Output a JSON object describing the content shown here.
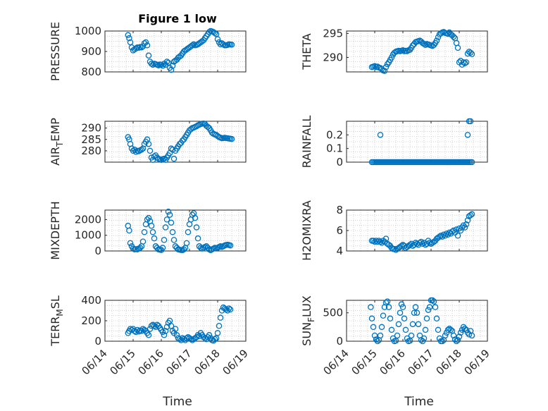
{
  "title": "Figure 1 low",
  "colors": {
    "marker": "#0072BD",
    "axis": "#262626",
    "grid": "#d0d0d0"
  },
  "x_axis": {
    "label": "Time",
    "ticks": [
      "06/14",
      "06/15",
      "06/16",
      "06/17",
      "06/18",
      "06/19"
    ],
    "range_days": [
      14,
      19
    ]
  },
  "chart_data": [
    {
      "type": "scatter",
      "ylabel": "PRESSURE",
      "ylim": [
        800,
        1000
      ],
      "yticks": [
        800,
        900,
        1000
      ],
      "ylabel_sub": null,
      "x": [
        14.82,
        14.86,
        14.9,
        14.95,
        15.0,
        15.05,
        15.1,
        15.15,
        15.2,
        15.25,
        15.3,
        15.35,
        15.4,
        15.45,
        15.5,
        15.55,
        15.6,
        15.65,
        15.7,
        15.75,
        15.8,
        15.85,
        15.9,
        15.95,
        16.0,
        16.05,
        16.1,
        16.15,
        16.2,
        16.25,
        16.3,
        16.35,
        16.4,
        16.45,
        16.5,
        16.55,
        16.6,
        16.65,
        16.7,
        16.75,
        16.8,
        16.85,
        16.9,
        16.95,
        17.0,
        17.05,
        17.1,
        17.15,
        17.2,
        17.25,
        17.3,
        17.35,
        17.4,
        17.45,
        17.5,
        17.55,
        17.6,
        17.65,
        17.7,
        17.75,
        17.8,
        17.85,
        17.9,
        17.95,
        18.0,
        18.05,
        18.1,
        18.15,
        18.2,
        18.25,
        18.3,
        18.35,
        18.4,
        18.45,
        18.5
      ],
      "y": [
        980,
        965,
        945,
        920,
        905,
        910,
        915,
        920,
        918,
        922,
        920,
        925,
        940,
        945,
        930,
        880,
        850,
        840,
        835,
        840,
        838,
        835,
        832,
        836,
        835,
        830,
        840,
        835,
        850,
        845,
        820,
        810,
        830,
        850,
        855,
        860,
        870,
        875,
        880,
        890,
        900,
        905,
        910,
        915,
        920,
        925,
        930,
        935,
        930,
        932,
        935,
        940,
        945,
        950,
        955,
        965,
        975,
        985,
        995,
        1000,
        998,
        995,
        990,
        985,
        960,
        945,
        935,
        940,
        935,
        930,
        930,
        932,
        935,
        934,
        933
      ]
    },
    {
      "type": "scatter",
      "ylabel": "THETA",
      "ylim": [
        287,
        295.5
      ],
      "yticks": [
        290,
        295
      ],
      "ylabel_sub": null,
      "x": [
        14.9,
        14.95,
        15.0,
        15.05,
        15.1,
        15.15,
        15.2,
        15.25,
        15.3,
        15.35,
        15.4,
        15.45,
        15.5,
        15.55,
        15.6,
        15.65,
        15.7,
        15.75,
        15.8,
        15.85,
        15.9,
        15.95,
        16.0,
        16.05,
        16.1,
        16.15,
        16.2,
        16.25,
        16.3,
        16.35,
        16.4,
        16.45,
        16.5,
        16.55,
        16.6,
        16.65,
        16.7,
        16.75,
        16.8,
        16.85,
        16.9,
        16.95,
        17.0,
        17.05,
        17.1,
        17.15,
        17.2,
        17.25,
        17.3,
        17.35,
        17.4,
        17.45,
        17.5,
        17.55,
        17.6,
        17.65,
        17.7,
        17.75,
        17.8,
        17.85,
        17.9,
        17.95,
        18.0,
        18.05,
        18.1,
        18.15,
        18.2,
        18.25,
        18.3,
        18.35,
        18.4,
        18.45
      ],
      "y": [
        288,
        288.1,
        288.2,
        288,
        288.1,
        287.9,
        287.8,
        287.6,
        287.3,
        287.2,
        288,
        288.6,
        289,
        289.5,
        290,
        290.6,
        291,
        291.2,
        291.3,
        291.4,
        291.3,
        291.4,
        291.5,
        291.3,
        291.4,
        291.3,
        291.5,
        291.6,
        292,
        292.5,
        292.8,
        293.2,
        293.3,
        293.4,
        293.5,
        293.3,
        293.0,
        292.8,
        292.6,
        292.8,
        292.7,
        292.6,
        292.5,
        292.4,
        292.6,
        293.0,
        293.5,
        294.2,
        294.8,
        295.0,
        295.2,
        295.3,
        295.1,
        295.0,
        294.9,
        295.2,
        294.8,
        294.6,
        294.3,
        294.0,
        293.0,
        292.0,
        289.0,
        289.3,
        288.5,
        289.0,
        288.8,
        289.0,
        290.8,
        291.2,
        291.0,
        290.7
      ]
    },
    {
      "type": "scatter",
      "ylabel": "AIR_TEMP",
      "ylim": [
        275,
        293
      ],
      "yticks": [
        280,
        285,
        290
      ],
      "ylabel_main": "AIR",
      "ylabel_sub": "T",
      "ylabel_rest": "EMP",
      "x": [
        14.82,
        14.86,
        14.9,
        14.95,
        15.0,
        15.05,
        15.1,
        15.15,
        15.2,
        15.25,
        15.3,
        15.35,
        15.4,
        15.45,
        15.5,
        15.55,
        15.6,
        15.65,
        15.7,
        15.75,
        15.8,
        15.85,
        15.9,
        15.95,
        16.0,
        16.05,
        16.1,
        16.15,
        16.2,
        16.25,
        16.3,
        16.35,
        16.4,
        16.45,
        16.5,
        16.55,
        16.6,
        16.65,
        16.7,
        16.75,
        16.8,
        16.85,
        16.9,
        16.95,
        17.0,
        17.05,
        17.1,
        17.15,
        17.2,
        17.25,
        17.3,
        17.35,
        17.4,
        17.45,
        17.5,
        17.55,
        17.6,
        17.65,
        17.7,
        17.75,
        17.8,
        17.85,
        17.9,
        17.95,
        18.0,
        18.05,
        18.1,
        18.15,
        18.2,
        18.25,
        18.3,
        18.35,
        18.4,
        18.45,
        18.5
      ],
      "y": [
        286,
        285,
        283,
        281,
        280,
        280.5,
        279.5,
        280,
        279.8,
        280.2,
        280.5,
        281,
        283,
        284,
        285,
        283,
        280,
        277,
        276,
        277.5,
        278,
        277,
        276.5,
        276.2,
        276.0,
        276.3,
        276.5,
        276.0,
        277,
        278,
        279,
        281,
        280.5,
        276.5,
        280,
        281,
        282,
        283,
        283.5,
        284.5,
        285,
        286,
        287,
        288,
        289,
        289.5,
        290,
        290.2,
        290.5,
        290.8,
        291.2,
        291.5,
        291.8,
        291.9,
        292.0,
        291.8,
        291.0,
        290.5,
        290.0,
        289.0,
        288.0,
        287.5,
        287.2,
        287.0,
        286.5,
        286.0,
        285.8,
        285.5,
        285.6,
        285.7,
        285.6,
        285.5,
        285.4,
        285.3,
        285.2
      ]
    },
    {
      "type": "scatter",
      "ylabel": "RAINFALL",
      "ylim": [
        0,
        0.3
      ],
      "yticks": [
        0,
        0.1,
        0.2
      ],
      "ylabel_sub": null,
      "x": [
        14.9,
        14.95,
        15.0,
        15.05,
        15.1,
        15.15,
        15.2,
        15.25,
        15.3,
        15.35,
        15.4,
        15.45,
        15.5,
        15.55,
        15.6,
        15.65,
        15.7,
        15.75,
        15.8,
        15.85,
        15.9,
        15.95,
        16.0,
        16.05,
        16.1,
        16.15,
        16.2,
        16.25,
        16.3,
        16.35,
        16.4,
        16.45,
        16.5,
        16.55,
        16.6,
        16.65,
        16.7,
        16.75,
        16.8,
        16.85,
        16.9,
        16.95,
        17.0,
        17.05,
        17.1,
        17.15,
        17.2,
        17.25,
        17.3,
        17.35,
        17.4,
        17.45,
        17.5,
        17.55,
        17.6,
        17.65,
        17.7,
        17.75,
        17.8,
        17.85,
        17.9,
        17.95,
        18.0,
        18.05,
        18.1,
        18.15,
        18.2,
        18.25,
        18.3,
        18.35,
        18.4,
        15.2,
        18.3,
        18.35,
        18.4,
        18.45
      ],
      "y": [
        0,
        0,
        0,
        0,
        0,
        0,
        0,
        0,
        0,
        0,
        0,
        0,
        0,
        0,
        0,
        0,
        0,
        0,
        0,
        0,
        0,
        0,
        0,
        0,
        0,
        0,
        0,
        0,
        0,
        0,
        0,
        0,
        0,
        0,
        0,
        0,
        0,
        0,
        0,
        0,
        0,
        0,
        0,
        0,
        0,
        0,
        0,
        0,
        0,
        0,
        0,
        0,
        0,
        0,
        0,
        0,
        0,
        0,
        0,
        0,
        0,
        0,
        0,
        0,
        0,
        0,
        0,
        0,
        0,
        0,
        0,
        0.2,
        0.2,
        0.3,
        0.3,
        0
      ]
    },
    {
      "type": "scatter",
      "ylabel": "MIXDEPTH",
      "ylim": [
        0,
        2600
      ],
      "yticks": [
        0,
        1000,
        2000
      ],
      "ylabel_sub": null,
      "x": [
        14.82,
        14.86,
        14.9,
        14.95,
        15.0,
        15.05,
        15.1,
        15.15,
        15.2,
        15.25,
        15.3,
        15.35,
        15.4,
        15.45,
        15.5,
        15.55,
        15.6,
        15.65,
        15.7,
        15.75,
        15.8,
        15.85,
        15.9,
        15.95,
        16.0,
        16.05,
        16.1,
        16.15,
        16.2,
        16.25,
        16.3,
        16.35,
        16.4,
        16.45,
        16.5,
        16.55,
        16.6,
        16.65,
        16.7,
        16.75,
        16.8,
        16.85,
        16.9,
        16.95,
        17.0,
        17.05,
        17.1,
        17.15,
        17.2,
        17.25,
        17.3,
        17.35,
        17.4,
        17.45,
        17.5,
        17.55,
        17.6,
        17.65,
        17.7,
        17.75,
        17.8,
        17.85,
        17.9,
        17.95,
        18.0,
        18.05,
        18.1,
        18.15,
        18.2,
        18.25,
        18.3,
        18.35,
        18.4,
        18.45
      ],
      "y": [
        1600,
        1300,
        500,
        300,
        150,
        100,
        120,
        100,
        150,
        200,
        300,
        600,
        1200,
        1700,
        2000,
        2100,
        1900,
        1600,
        1200,
        800,
        300,
        200,
        100,
        80,
        60,
        200,
        700,
        1500,
        2000,
        2500,
        2300,
        1800,
        1200,
        700,
        300,
        200,
        100,
        80,
        60,
        50,
        100,
        200,
        500,
        1200,
        1700,
        2000,
        2300,
        2400,
        2100,
        1500,
        800,
        300,
        200,
        150,
        200,
        250,
        300,
        200,
        100,
        50,
        100,
        150,
        200,
        180,
        200,
        250,
        300,
        250,
        300,
        350,
        380,
        400,
        380,
        350
      ]
    },
    {
      "type": "scatter",
      "ylabel": "H2OMIXRA",
      "ylim": [
        4,
        8
      ],
      "yticks": [
        4,
        6,
        8
      ],
      "ylabel_sub": null,
      "x": [
        14.9,
        14.95,
        15.0,
        15.05,
        15.1,
        15.15,
        15.2,
        15.25,
        15.3,
        15.35,
        15.4,
        15.45,
        15.5,
        15.55,
        15.6,
        15.65,
        15.7,
        15.75,
        15.8,
        15.85,
        15.9,
        15.95,
        16.0,
        16.05,
        16.1,
        16.15,
        16.2,
        16.25,
        16.3,
        16.35,
        16.4,
        16.45,
        16.5,
        16.55,
        16.6,
        16.65,
        16.7,
        16.75,
        16.8,
        16.85,
        16.9,
        16.95,
        17.0,
        17.05,
        17.1,
        17.15,
        17.2,
        17.25,
        17.3,
        17.35,
        17.4,
        17.45,
        17.5,
        17.55,
        17.6,
        17.65,
        17.7,
        17.75,
        17.8,
        17.85,
        17.9,
        17.95,
        18.0,
        18.05,
        18.1,
        18.15,
        18.2,
        18.25,
        18.3,
        18.35,
        18.4,
        18.45
      ],
      "y": [
        5.0,
        5.0,
        4.9,
        5.0,
        4.9,
        5.0,
        4.9,
        4.8,
        5.0,
        4.9,
        5.2,
        4.7,
        4.6,
        4.5,
        4.3,
        4.2,
        4.2,
        4.1,
        4.2,
        4.3,
        4.4,
        4.5,
        4.6,
        4.5,
        4.3,
        4.4,
        4.5,
        4.6,
        4.7,
        4.5,
        4.6,
        4.8,
        4.7,
        4.6,
        4.8,
        4.9,
        4.7,
        4.8,
        4.6,
        4.7,
        5.0,
        4.8,
        4.7,
        4.8,
        4.9,
        5.0,
        5.2,
        5.3,
        5.4,
        5.5,
        5.4,
        5.6,
        5.5,
        5.7,
        5.6,
        5.8,
        5.7,
        5.9,
        6.0,
        5.8,
        6.1,
        5.5,
        6.2,
        6.0,
        6.3,
        6.5,
        6.3,
        6.6,
        7.0,
        7.4,
        7.5,
        7.6
      ]
    },
    {
      "type": "scatter",
      "ylabel": "TERR_MSL",
      "ylim": [
        0,
        400
      ],
      "yticks": [
        0,
        200,
        400
      ],
      "ylabel_main": "TERR",
      "ylabel_sub": "M",
      "ylabel_rest": "SL",
      "x": [
        14.82,
        14.86,
        14.9,
        14.95,
        15.0,
        15.05,
        15.1,
        15.15,
        15.2,
        15.25,
        15.3,
        15.35,
        15.4,
        15.45,
        15.5,
        15.55,
        15.6,
        15.65,
        15.7,
        15.75,
        15.8,
        15.85,
        15.9,
        15.95,
        16.0,
        16.05,
        16.1,
        16.15,
        16.2,
        16.25,
        16.3,
        16.35,
        16.4,
        16.45,
        16.5,
        16.55,
        16.6,
        16.65,
        16.7,
        16.75,
        16.8,
        16.85,
        16.9,
        16.95,
        17.0,
        17.05,
        17.1,
        17.15,
        17.2,
        17.25,
        17.3,
        17.35,
        17.4,
        17.45,
        17.5,
        17.55,
        17.6,
        17.65,
        17.7,
        17.75,
        17.8,
        17.85,
        17.9,
        17.95,
        18.0,
        18.05,
        18.1,
        18.15,
        18.2,
        18.25,
        18.3,
        18.35,
        18.4,
        18.45
      ],
      "y": [
        80,
        100,
        120,
        110,
        120,
        100,
        90,
        110,
        95,
        105,
        100,
        120,
        110,
        100,
        80,
        60,
        120,
        150,
        160,
        150,
        140,
        160,
        150,
        130,
        110,
        90,
        60,
        100,
        140,
        180,
        200,
        150,
        100,
        80,
        120,
        60,
        30,
        20,
        10,
        30,
        20,
        10,
        30,
        40,
        30,
        20,
        10,
        20,
        30,
        40,
        60,
        50,
        80,
        60,
        40,
        30,
        20,
        40,
        60,
        30,
        10,
        5,
        20,
        30,
        80,
        150,
        230,
        300,
        330,
        320,
        310,
        300,
        320,
        310
      ]
    },
    {
      "type": "scatter",
      "ylabel": "SUN_FLUX",
      "ylim": [
        0,
        720
      ],
      "yticks": [
        0,
        500
      ],
      "ylabel_main": "SUN",
      "ylabel_sub": "F",
      "ylabel_rest": "LUX",
      "x": [
        14.86,
        14.9,
        14.95,
        15.0,
        15.05,
        15.1,
        15.15,
        15.2,
        15.25,
        15.3,
        15.35,
        15.4,
        15.45,
        15.5,
        15.55,
        15.6,
        15.65,
        15.7,
        15.75,
        15.8,
        15.85,
        15.9,
        15.95,
        16.0,
        16.05,
        16.1,
        16.15,
        16.2,
        16.25,
        16.3,
        16.35,
        16.4,
        16.45,
        16.5,
        16.55,
        16.6,
        16.65,
        16.7,
        16.75,
        16.8,
        16.85,
        16.9,
        16.95,
        17.0,
        17.05,
        17.1,
        17.15,
        17.2,
        17.25,
        17.3,
        17.35,
        17.4,
        17.45,
        17.5,
        17.55,
        17.6,
        17.65,
        17.7,
        17.75,
        17.8,
        17.85,
        17.9,
        17.95,
        18.0,
        18.05,
        18.1,
        18.15,
        18.2,
        18.25,
        18.3,
        18.35,
        18.4,
        18.45
      ],
      "y": [
        600,
        400,
        250,
        100,
        30,
        0,
        20,
        100,
        250,
        450,
        600,
        680,
        700,
        600,
        400,
        200,
        50,
        0,
        10,
        100,
        300,
        500,
        650,
        600,
        400,
        200,
        50,
        0,
        10,
        100,
        300,
        500,
        600,
        500,
        300,
        100,
        20,
        0,
        50,
        200,
        400,
        550,
        600,
        720,
        720,
        700,
        600,
        400,
        200,
        50,
        0,
        0,
        20,
        100,
        150,
        200,
        220,
        200,
        180,
        100,
        30,
        0,
        20,
        80,
        150,
        200,
        250,
        220,
        200,
        150,
        120,
        180,
        100
      ]
    }
  ]
}
